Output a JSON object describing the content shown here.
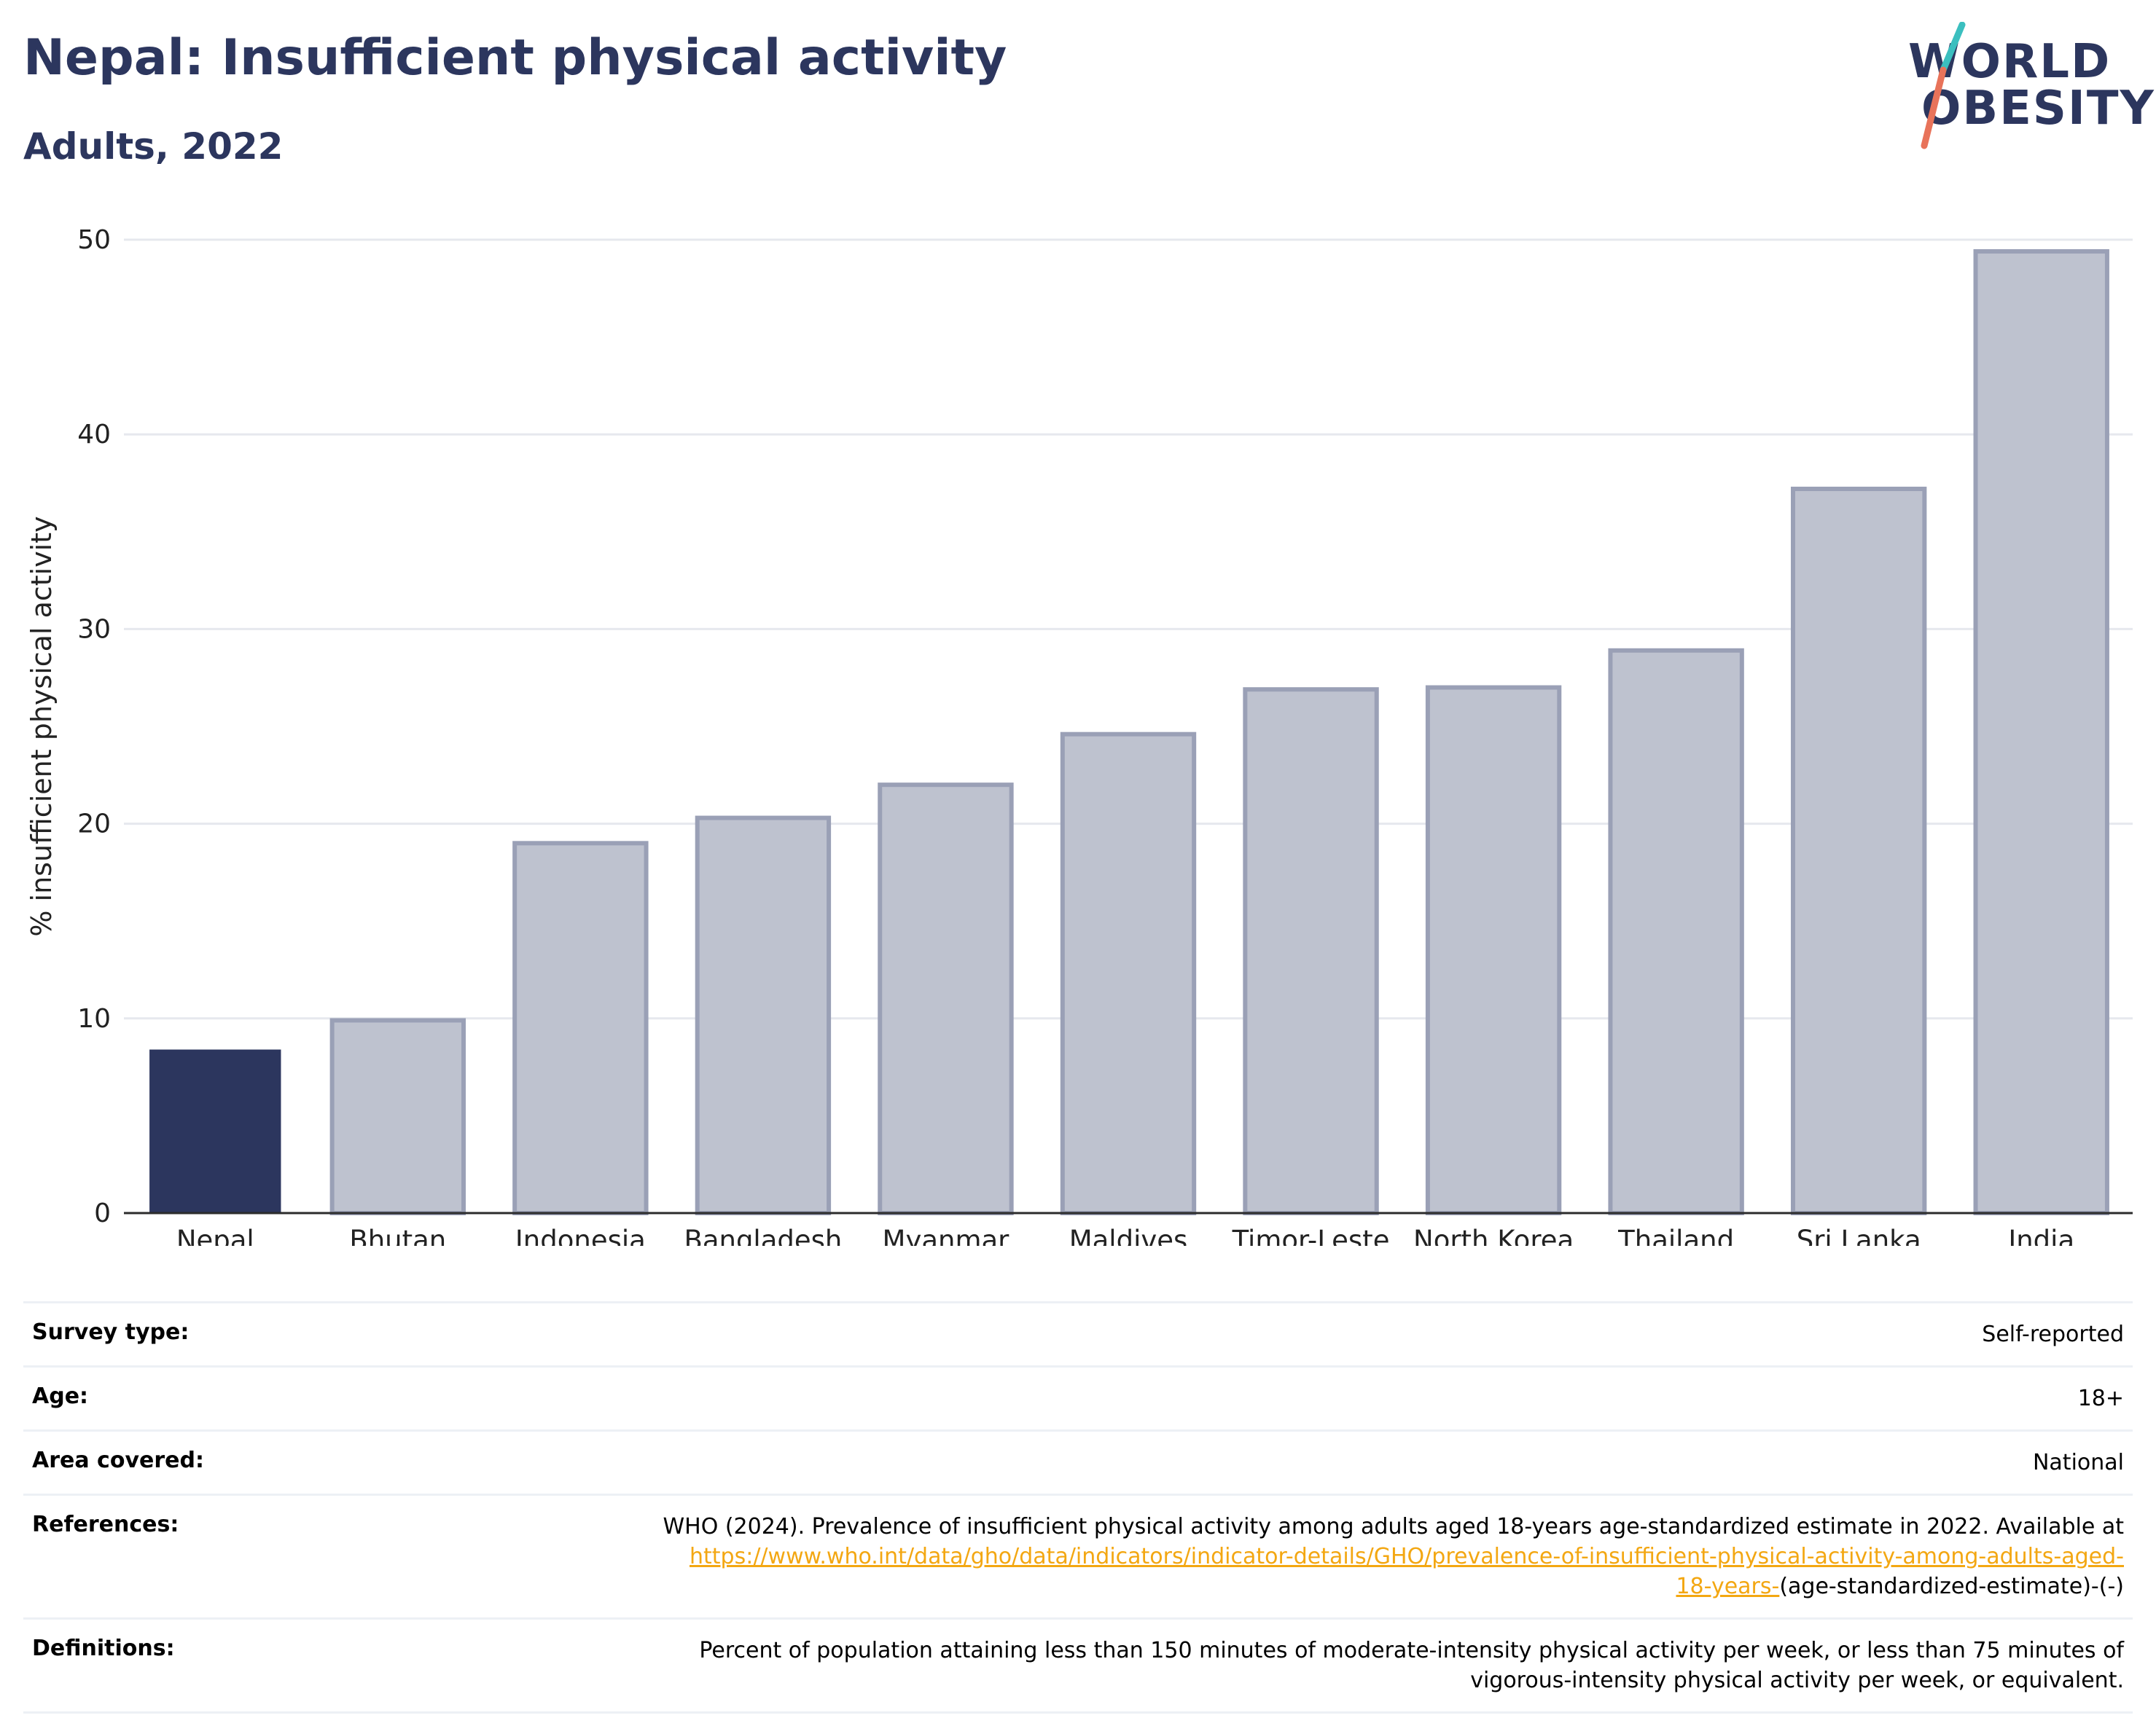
{
  "header": {
    "title": "Nepal: Insufficient physical activity",
    "subtitle": "Adults, 2022"
  },
  "logo": {
    "line1": "WORLD",
    "line2": "OBESITY",
    "accent_teal": "#3bbfbf",
    "accent_coral": "#e8735a"
  },
  "chart_data": {
    "type": "bar",
    "categories": [
      "Nepal",
      "Bhutan",
      "Indonesia",
      "Bangladesh",
      "Myanmar",
      "Maldives",
      "Timor-Leste",
      "North Korea",
      "Thailand",
      "Sri Lanka",
      "India"
    ],
    "values": [
      8.4,
      9.9,
      19.0,
      20.3,
      22.0,
      24.6,
      26.9,
      27.0,
      28.9,
      37.2,
      49.4
    ],
    "highlight": "Nepal",
    "ylabel": "% insufficient physical activity",
    "xlabel": "",
    "ylim": [
      0,
      50
    ],
    "yticks": [
      0,
      10,
      20,
      30,
      40,
      50
    ],
    "grid": true,
    "colors": {
      "highlight": "#2c365e",
      "other_fill": "#bec2cf",
      "other_border": "#9aa0b6",
      "grid": "#e6e8ee",
      "axis": "#2c2c2c"
    }
  },
  "info": {
    "survey_type_label": "Survey type:",
    "survey_type_value": "Self-reported",
    "age_label": "Age:",
    "age_value": "18+",
    "area_label": "Area covered:",
    "area_value": "National",
    "references_label": "References:",
    "references_text_1": "WHO (2024). Prevalence of insufficient physical activity among adults aged 18-years age-standardized estimate in 2022. Available at",
    "references_link_a": "https://www.who.int/data/gho/data/indicators/indicator-details/GHO/prevalence-of-insufficient-physical-activity-among-adults-aged-",
    "references_link_b": "18-years-",
    "references_text_2": "(age-standardized-estimate)-(-)",
    "definitions_label": "Definitions:",
    "definitions_line1": "Percent of population attaining less than 150 minutes of moderate-intensity physical activity per week, or less than 75 minutes of",
    "definitions_line2": "vigorous-intensity physical activity per week, or equivalent."
  }
}
